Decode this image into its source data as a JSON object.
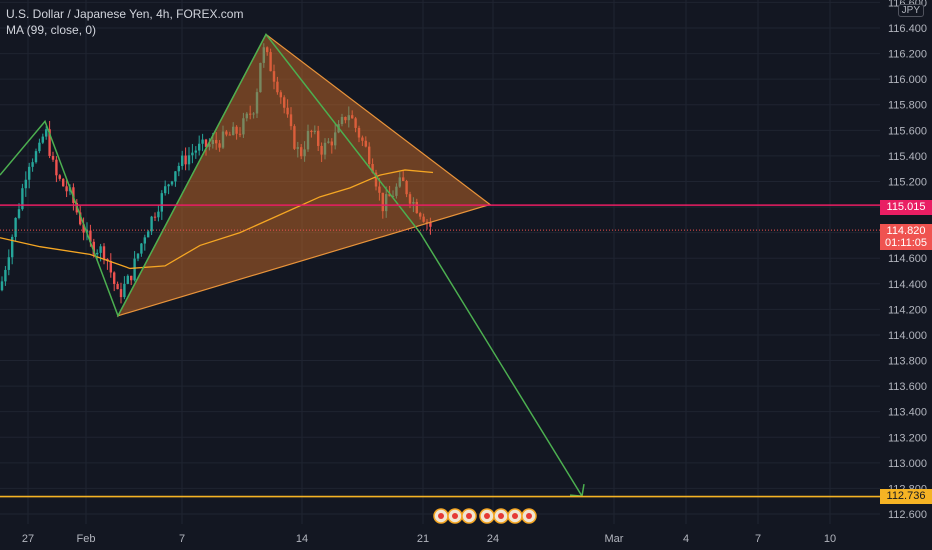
{
  "legend": {
    "symbol_line": "U.S. Dollar / Japanese Yen, 4h, FOREX.com",
    "indicator_line": "MA (99, close, 0)"
  },
  "price_axis": {
    "currency": "JPY",
    "ticks": [
      "116.600",
      "116.400",
      "116.200",
      "116.000",
      "115.800",
      "115.600",
      "115.400",
      "115.200",
      "115.000",
      "114.800",
      "114.600",
      "114.400",
      "114.200",
      "114.000",
      "113.800",
      "113.600",
      "113.400",
      "113.200",
      "113.000",
      "112.800",
      "112.600"
    ]
  },
  "time_axis": {
    "labels": [
      "27",
      "Feb",
      "7",
      "14",
      "21",
      "24",
      "Mar",
      "4",
      "7",
      "10"
    ]
  },
  "price_tags": {
    "resistance": "115.015",
    "last_price": "114.820",
    "countdown": "01:11:05",
    "target": "112.736"
  },
  "colors": {
    "background": "#131722",
    "grid": "#1f2431",
    "up_candle": "#26a69a",
    "down_candle": "#ef5350",
    "moving_average": "#f5a623",
    "triangle_fill": "#c76a26",
    "triangle_stroke": "#e8933a",
    "green_path": "#4caf50",
    "resistance_line": "#e91e63",
    "target_line": "#f5b324"
  },
  "chart_data": {
    "type": "candlestick",
    "instrument": "U.S. Dollar / Japanese Yen",
    "timeframe": "4h",
    "price_range": [
      112.55,
      116.65
    ],
    "horizontal_levels": [
      {
        "price": 115.015,
        "color": "#e91e63"
      },
      {
        "price": 114.82,
        "color": "#ef5350",
        "style": "dotted"
      },
      {
        "price": 112.736,
        "color": "#f5b324"
      }
    ],
    "pattern_triangle": [
      [
        266,
        116.35
      ],
      [
        118,
        114.15
      ],
      [
        490,
        115.02
      ]
    ],
    "projection_path": [
      [
        0,
        115.25
      ],
      [
        45,
        115.67
      ],
      [
        118,
        114.15
      ],
      [
        266,
        116.35
      ],
      [
        420,
        114.8
      ],
      [
        582,
        112.74
      ]
    ],
    "ma_points": [
      [
        0,
        114.76
      ],
      [
        40,
        114.69
      ],
      [
        90,
        114.63
      ],
      [
        130,
        114.52
      ],
      [
        165,
        114.54
      ],
      [
        200,
        114.7
      ],
      [
        240,
        114.8
      ],
      [
        280,
        114.94
      ],
      [
        320,
        115.08
      ],
      [
        350,
        115.15
      ],
      [
        380,
        115.25
      ],
      [
        405,
        115.29
      ],
      [
        433,
        115.27
      ]
    ],
    "markers_on_axis": 7
  }
}
